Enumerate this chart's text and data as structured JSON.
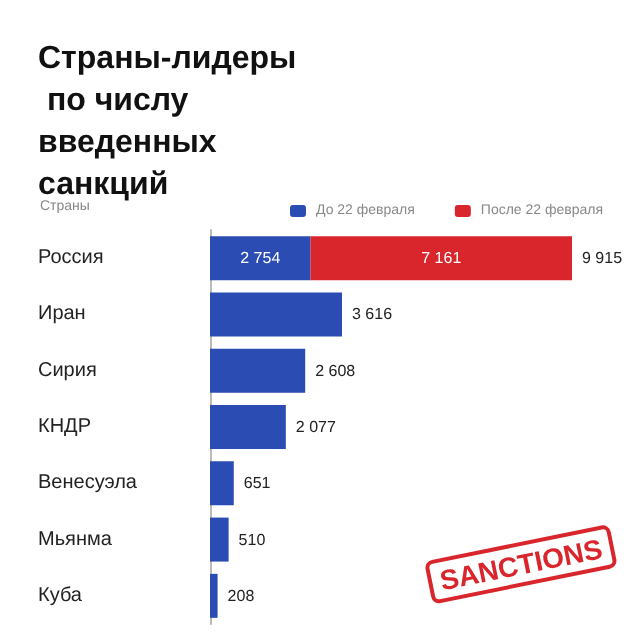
{
  "chart_data": {
    "type": "bar",
    "orientation": "horizontal",
    "stacked": true,
    "title": "Страны-лидеры по числу введенных санкций",
    "ylabel": "Страны",
    "legend": "top",
    "categories": [
      "Россия",
      "Иран",
      "Сирия",
      "КНДР",
      "Венесуэла",
      "Мьянма",
      "Куба"
    ],
    "series": [
      {
        "name": "До 22 февраля",
        "color": "#2b4cb3",
        "values": [
          2754,
          3616,
          2608,
          2077,
          651,
          510,
          208
        ],
        "value_labels": [
          "2 754",
          "3 616",
          "2 608",
          "2 077",
          "651",
          "510",
          "208"
        ]
      },
      {
        "name": "После 22 февраля",
        "color": "#d9262c",
        "values": [
          7161,
          null,
          null,
          null,
          null,
          null,
          null
        ],
        "value_labels": [
          "7 161",
          null,
          null,
          null,
          null,
          null,
          null
        ]
      }
    ],
    "totals": [
      "9 915",
      null,
      null,
      null,
      null,
      null,
      null
    ],
    "annotations": [
      "SANCTIONS"
    ]
  }
}
